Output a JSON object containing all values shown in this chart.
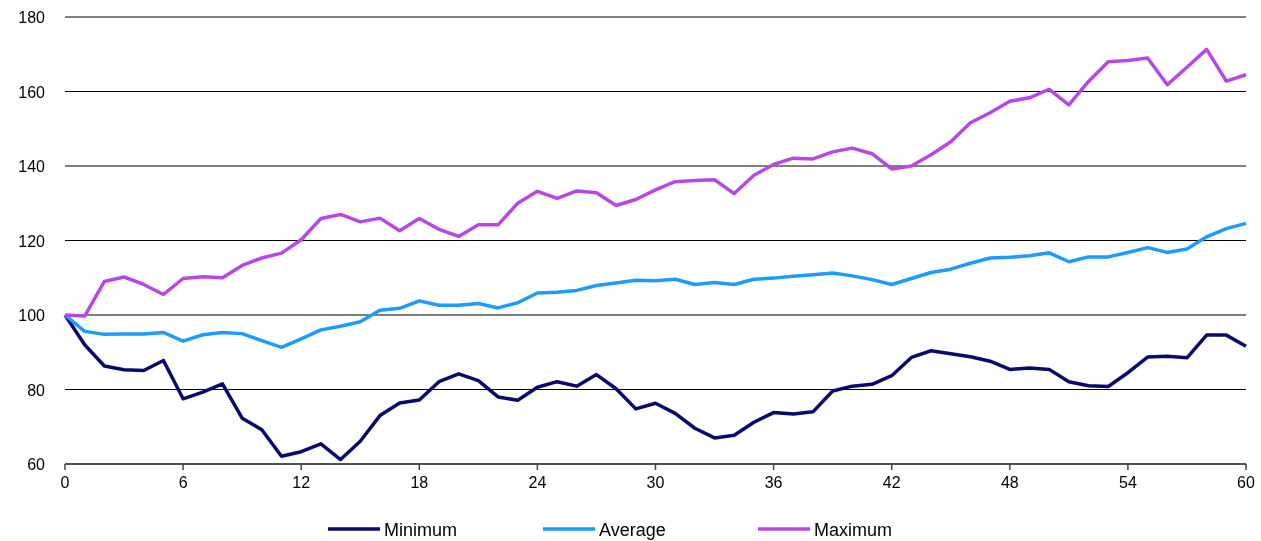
{
  "chart_data": {
    "type": "line",
    "x": [
      0,
      1,
      2,
      3,
      4,
      5,
      6,
      7,
      8,
      9,
      10,
      11,
      12,
      13,
      14,
      15,
      16,
      17,
      18,
      19,
      20,
      21,
      22,
      23,
      24,
      25,
      26,
      27,
      28,
      29,
      30,
      31,
      32,
      33,
      34,
      35,
      36,
      37,
      38,
      39,
      40,
      41,
      42,
      43,
      44,
      45,
      46,
      47,
      48,
      49,
      50,
      51,
      52,
      53,
      54,
      55,
      56,
      57,
      58,
      59,
      60
    ],
    "series": [
      {
        "name": "Minimum",
        "color": "#0a0a6e",
        "values": [
          100,
          92,
          86.3,
          85.3,
          85.1,
          87.8,
          77.5,
          79.3,
          81.5,
          72.3,
          69.2,
          62.1,
          63.3,
          65.4,
          61.2,
          66.1,
          73,
          76.4,
          77.2,
          82.1,
          84.2,
          82.4,
          78,
          77.1,
          80.6,
          82.1,
          80.9,
          84,
          80.2,
          74.8,
          76.3,
          73.6,
          69.6,
          67,
          67.7,
          71.2,
          73.8,
          73.4,
          74,
          79.6,
          80.9,
          81.4,
          83.7,
          88.6,
          90.4,
          89.6,
          88.8,
          87.6,
          85.4,
          85.8,
          85.4,
          82.1,
          81,
          80.8,
          84.5,
          88.7,
          88.9,
          88.5,
          94.6,
          94.6,
          91.6
        ]
      },
      {
        "name": "Average",
        "color": "#1e9bff",
        "values": [
          100,
          95.6,
          94.8,
          94.9,
          94.9,
          95.3,
          93,
          94.7,
          95.3,
          95,
          93.1,
          91.3,
          93.6,
          96,
          97,
          98.2,
          101.3,
          101.8,
          103.8,
          102.6,
          102.6,
          103.1,
          101.9,
          103.3,
          105.9,
          106.1,
          106.6,
          107.9,
          108.6,
          109.3,
          109.2,
          109.6,
          108.2,
          108.7,
          108.2,
          109.6,
          109.9,
          110.4,
          110.8,
          111.3,
          110.5,
          109.5,
          108.2,
          109.8,
          111.4,
          112.3,
          113.9,
          115.3,
          115.5,
          115.9,
          116.7,
          114.3,
          115.6,
          115.6,
          116.8,
          118.1,
          116.8,
          117.7,
          121,
          123.2,
          124.6
        ]
      },
      {
        "name": "Maximum",
        "color": "#b847e8",
        "values": [
          100,
          99.7,
          109,
          110.2,
          108.2,
          105.5,
          109.8,
          110.3,
          110,
          113.3,
          115.3,
          116.6,
          120.2,
          125.9,
          127,
          125,
          126,
          122.6,
          125.9,
          123,
          121.1,
          124.2,
          124.2,
          130,
          133.2,
          131.3,
          133.3,
          132.8,
          129.4,
          131,
          133.6,
          135.8,
          136.1,
          136.3,
          132.6,
          137.5,
          140.4,
          142.1,
          141.9,
          143.8,
          144.8,
          143.3,
          139.2,
          140,
          143,
          146.5,
          151.6,
          154.3,
          157.4,
          158.3,
          160.6,
          156.4,
          162.7,
          168,
          168.3,
          169,
          161.8,
          166.5,
          171.3,
          162.8,
          164.5
        ]
      }
    ],
    "xlim": [
      0,
      60
    ],
    "xticks": [
      0,
      6,
      12,
      18,
      24,
      30,
      36,
      42,
      48,
      54,
      60
    ],
    "ylim": [
      60,
      180
    ],
    "yticks": [
      60,
      80,
      100,
      120,
      140,
      160,
      180
    ],
    "grid": "y",
    "legend": "bottom"
  }
}
